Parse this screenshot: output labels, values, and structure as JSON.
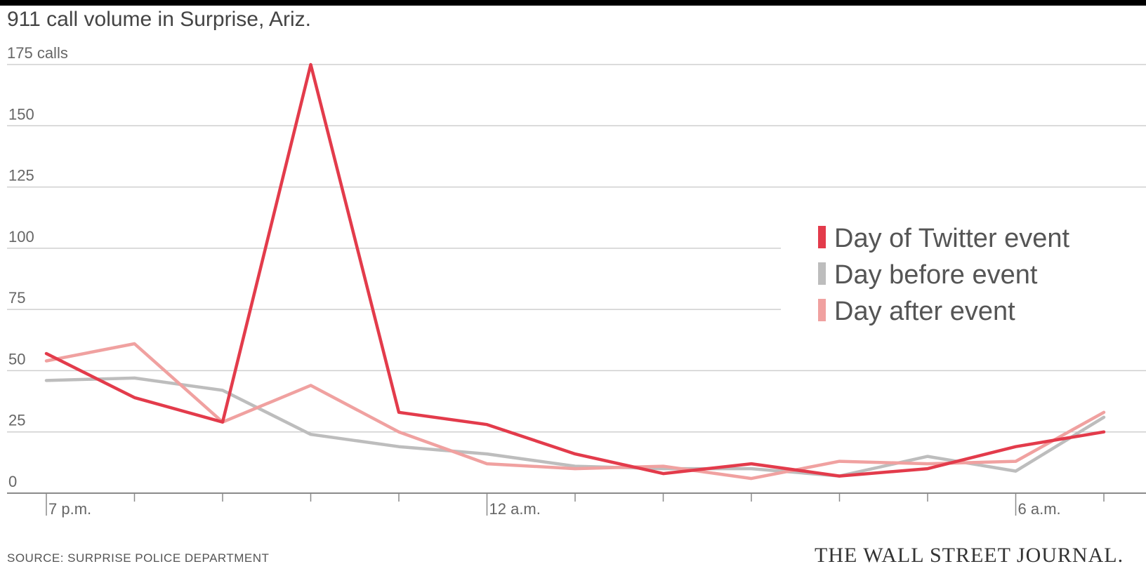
{
  "chart_data": {
    "type": "line",
    "title": "911 call volume in Surprise, Ariz.",
    "y_unit_label": "175 calls",
    "ylim": [
      0,
      175
    ],
    "yticks": [
      0,
      25,
      50,
      75,
      100,
      125,
      150,
      175
    ],
    "ytick_labels": [
      "0",
      "25",
      "50",
      "75",
      "100",
      "125",
      "150",
      ""
    ],
    "x": [
      0,
      1,
      2,
      3,
      4,
      5,
      6,
      7,
      8,
      9,
      10,
      11,
      12
    ],
    "xlim": [
      0,
      12
    ],
    "xtick_positions": [
      0,
      1,
      2,
      3,
      4,
      5,
      6,
      7,
      8,
      9,
      10,
      11,
      12
    ],
    "xtick_labels": [
      "7 p.m.",
      "",
      "",
      "",
      "",
      "12 a.m.",
      "",
      "",
      "",
      "",
      "",
      "6 a.m.",
      ""
    ],
    "grid": true,
    "legend_position": "right",
    "series": [
      {
        "name": "Day of Twitter event",
        "color": "#e33b4b",
        "values": [
          57,
          39,
          29,
          175,
          33,
          28,
          16,
          8,
          12,
          7,
          10,
          19,
          25
        ]
      },
      {
        "name": "Day before event",
        "color": "#bdbdbd",
        "values": [
          46,
          47,
          42,
          24,
          19,
          16,
          11,
          10,
          10,
          7,
          15,
          9,
          31
        ]
      },
      {
        "name": "Day after event",
        "color": "#f0a1a0",
        "values": [
          54,
          61,
          29,
          44,
          25,
          12,
          10,
          11,
          6,
          13,
          12,
          13,
          33
        ]
      }
    ]
  },
  "source": "SOURCE: SURPRISE POLICE DEPARTMENT",
  "publisher": "THE WALL STREET JOURNAL."
}
